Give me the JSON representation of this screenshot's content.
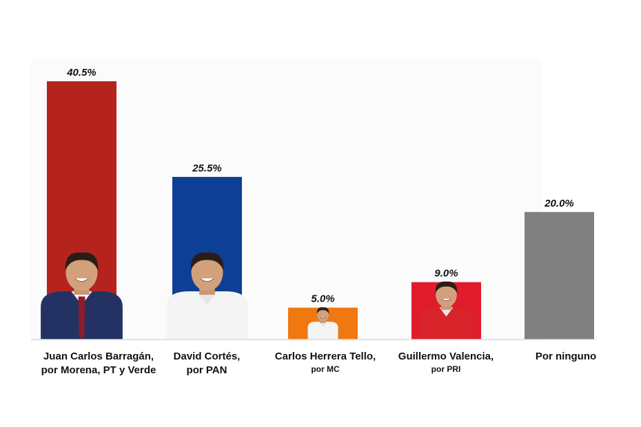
{
  "chart_data": {
    "type": "bar",
    "title": "",
    "xlabel": "",
    "ylabel": "",
    "ylim": [
      0,
      40.5
    ],
    "grid": false,
    "legend": "none",
    "categories": [
      {
        "line1": "Juan Carlos Barragán,",
        "line2": "por Morena, PT y Verde"
      },
      {
        "line1": "David Cortés,",
        "line2": "por PAN"
      },
      {
        "line1": "Carlos Herrera Tello,",
        "line2": "por MC"
      },
      {
        "line1": "Guillermo Valencia,",
        "line2": "por PRI"
      },
      {
        "line1": "Por ninguno",
        "line2": ""
      }
    ],
    "values": [
      40.5,
      25.5,
      5.0,
      9.0,
      20.0
    ],
    "value_labels": [
      "40.5%",
      "25.5%",
      "5.0%",
      "9.0%",
      "20.0%"
    ],
    "colors": [
      "#b5231f",
      "#0d3f96",
      "#f07810",
      "#e01b2c",
      "#808080"
    ],
    "photos": [
      "candidate-photo",
      "candidate-photo",
      "candidate-photo",
      "candidate-photo",
      ""
    ]
  }
}
